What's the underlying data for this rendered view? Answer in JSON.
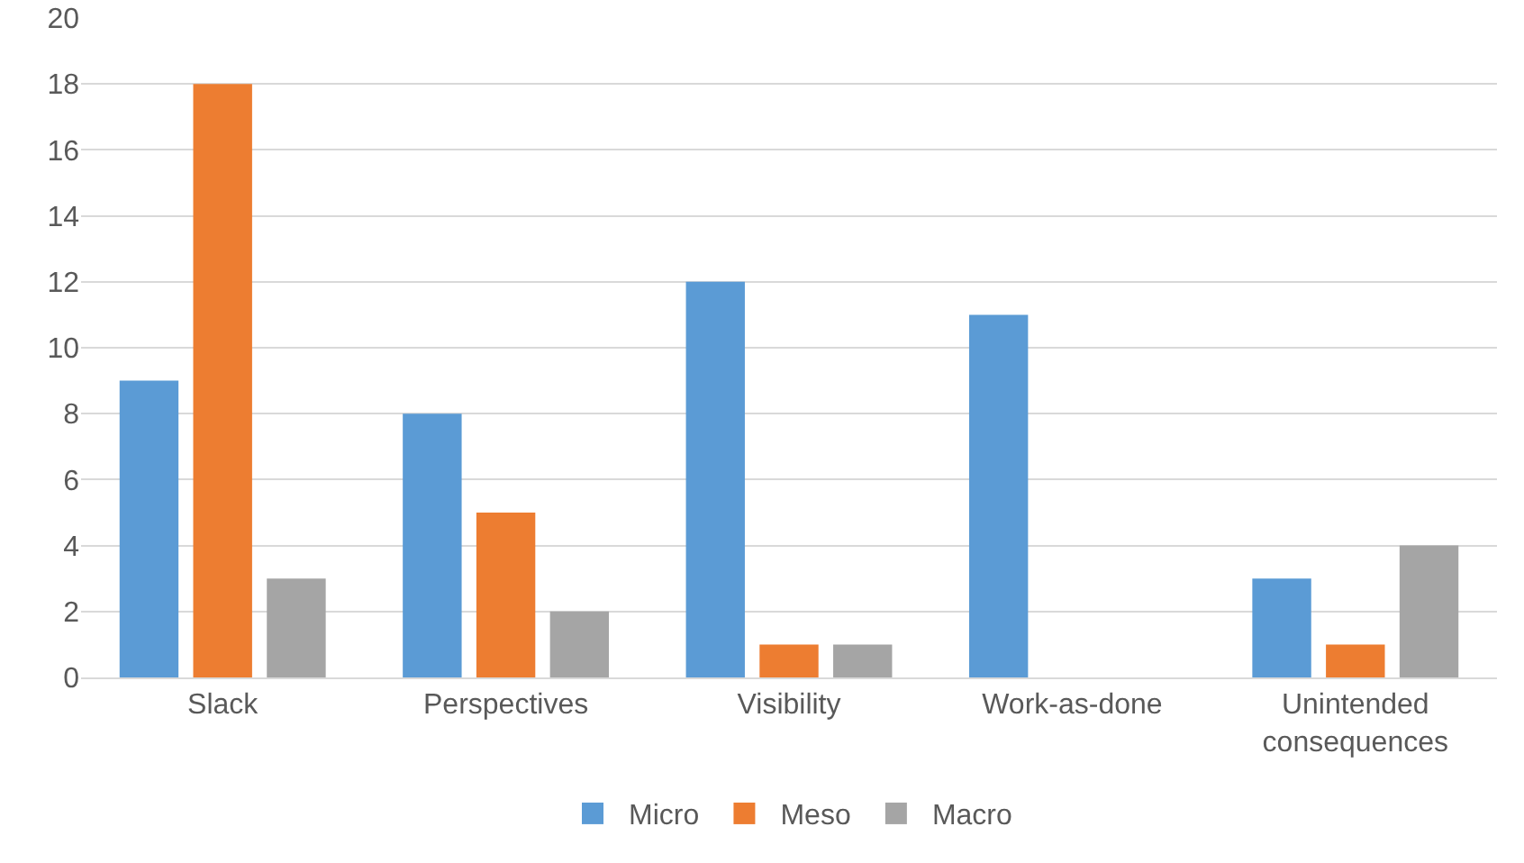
{
  "chart_data": {
    "type": "bar",
    "categories": [
      "Slack",
      "Perspectives",
      "Visibility",
      "Work-as-done",
      "Unintended consequences"
    ],
    "series": [
      {
        "name": "Micro",
        "color": "#5b9bd5",
        "values": [
          9,
          8,
          12,
          11,
          3
        ]
      },
      {
        "name": "Meso",
        "color": "#ed7d31",
        "values": [
          18,
          5,
          1,
          0,
          1
        ]
      },
      {
        "name": "Macro",
        "color": "#a5a5a5",
        "values": [
          3,
          2,
          1,
          0,
          4
        ]
      }
    ],
    "ylim": [
      0,
      20
    ],
    "yticks": [
      0,
      2,
      4,
      6,
      8,
      10,
      12,
      14,
      16,
      18,
      20
    ],
    "grid": "y",
    "legend": "bottom"
  }
}
